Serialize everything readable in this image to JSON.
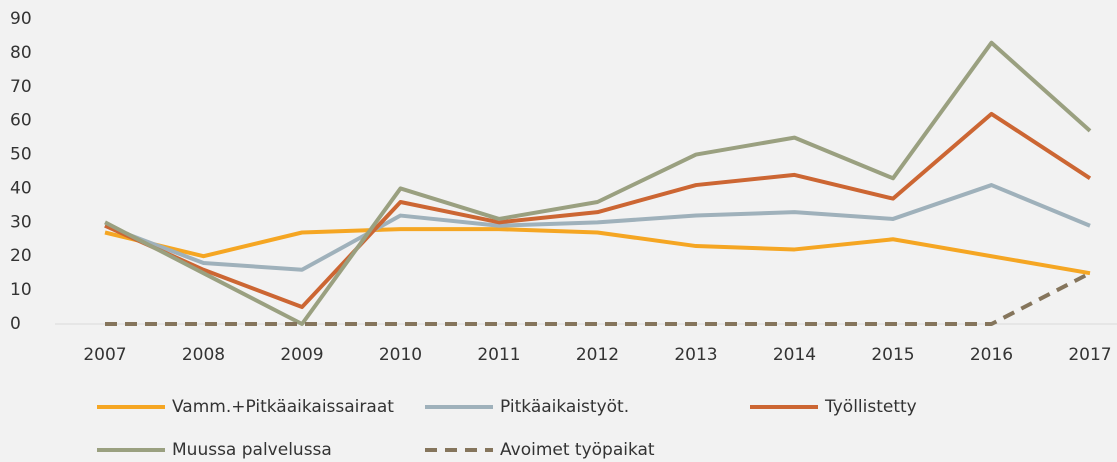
{
  "chart_data": {
    "type": "line",
    "categories": [
      "2007",
      "2008",
      "2009",
      "2010",
      "2011",
      "2012",
      "2013",
      "2014",
      "2015",
      "2016",
      "2017"
    ],
    "series": [
      {
        "name": "Vamm.+Pitkäaikaissairaat",
        "color": "#f5a623",
        "values": [
          27,
          20,
          27,
          28,
          28,
          27,
          23,
          22,
          25,
          20,
          15
        ]
      },
      {
        "name": "Pitkäaikaistyöt.",
        "color": "#9fb1bb",
        "values": [
          29,
          18,
          16,
          32,
          29,
          30,
          32,
          33,
          31,
          41,
          29
        ]
      },
      {
        "name": "Työllistetty",
        "color": "#cc6633",
        "values": [
          29,
          16,
          5,
          36,
          30,
          33,
          41,
          44,
          37,
          62,
          43
        ]
      },
      {
        "name": "Muussa palvelussa",
        "color": "#9aa080",
        "values": [
          30,
          15,
          0,
          40,
          31,
          36,
          50,
          55,
          43,
          83,
          57
        ]
      },
      {
        "name": "Avoimet työpaikat",
        "color": "#85755c",
        "line_style": "dashed",
        "values": [
          0,
          0,
          0,
          0,
          0,
          0,
          0,
          0,
          0,
          0,
          15
        ]
      }
    ],
    "ylim": [
      0,
      90
    ],
    "yticks": [
      0,
      10,
      20,
      30,
      40,
      50,
      60,
      70,
      80,
      90
    ],
    "grid": false,
    "legend": "bottom"
  }
}
